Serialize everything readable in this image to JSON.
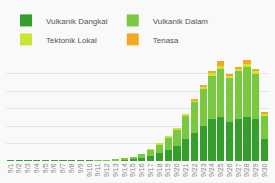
{
  "chart_data": {
    "type": "bar",
    "categories": [
      "9/1",
      "9/2",
      "9/3",
      "9/4",
      "9/5",
      "9/6",
      "9/7",
      "9/8",
      "9/9",
      "9/10",
      "9/11",
      "9/12",
      "9/13",
      "9/14",
      "9/15",
      "9/16",
      "9/17",
      "9/18",
      "9/19",
      "9/20",
      "9/21",
      "9/22",
      "9/23",
      "9/24",
      "9/25",
      "9/26",
      "9/27",
      "9/28",
      "9/29",
      "9/30"
    ],
    "series": [
      {
        "name": "Vulkanik Dangkal",
        "color": "#33a02c",
        "values": [
          1,
          1,
          1,
          1,
          1,
          1,
          1,
          1,
          1,
          1,
          1,
          1,
          2,
          3,
          5,
          8,
          12,
          18,
          25,
          35,
          50,
          65,
          80,
          95,
          100,
          90,
          95,
          100,
          95,
          50
        ]
      },
      {
        "name": "Vulkanik Dalam",
        "color": "#78c940",
        "values": [
          0,
          0,
          0,
          0,
          0,
          0,
          0,
          0,
          0,
          0,
          1,
          1,
          2,
          3,
          5,
          8,
          14,
          20,
          28,
          38,
          55,
          70,
          85,
          100,
          110,
          100,
          110,
          115,
          105,
          55
        ]
      },
      {
        "name": "Tektonik Lokal",
        "color": "#c8e636",
        "values": [
          0,
          0,
          0,
          0,
          0,
          0,
          0,
          0,
          0,
          0,
          0,
          0,
          0,
          0,
          0,
          0,
          1,
          1,
          2,
          2,
          3,
          4,
          5,
          6,
          7,
          5,
          6,
          7,
          6,
          3
        ]
      },
      {
        "name": "Tenasa",
        "color": "#f5a623",
        "values": [
          0,
          0,
          0,
          0,
          0,
          0,
          0,
          0,
          0,
          0,
          0,
          0,
          0,
          0,
          0,
          0,
          0,
          0,
          0,
          0,
          0,
          1,
          2,
          5,
          12,
          3,
          5,
          10,
          5,
          3
        ]
      }
    ],
    "stacked": true,
    "ylim": [
      0,
      240
    ],
    "yticks": [
      0,
      40,
      80,
      120,
      160,
      200,
      240
    ],
    "grid": true,
    "legend": "upper left",
    "tick_labels": "x"
  }
}
